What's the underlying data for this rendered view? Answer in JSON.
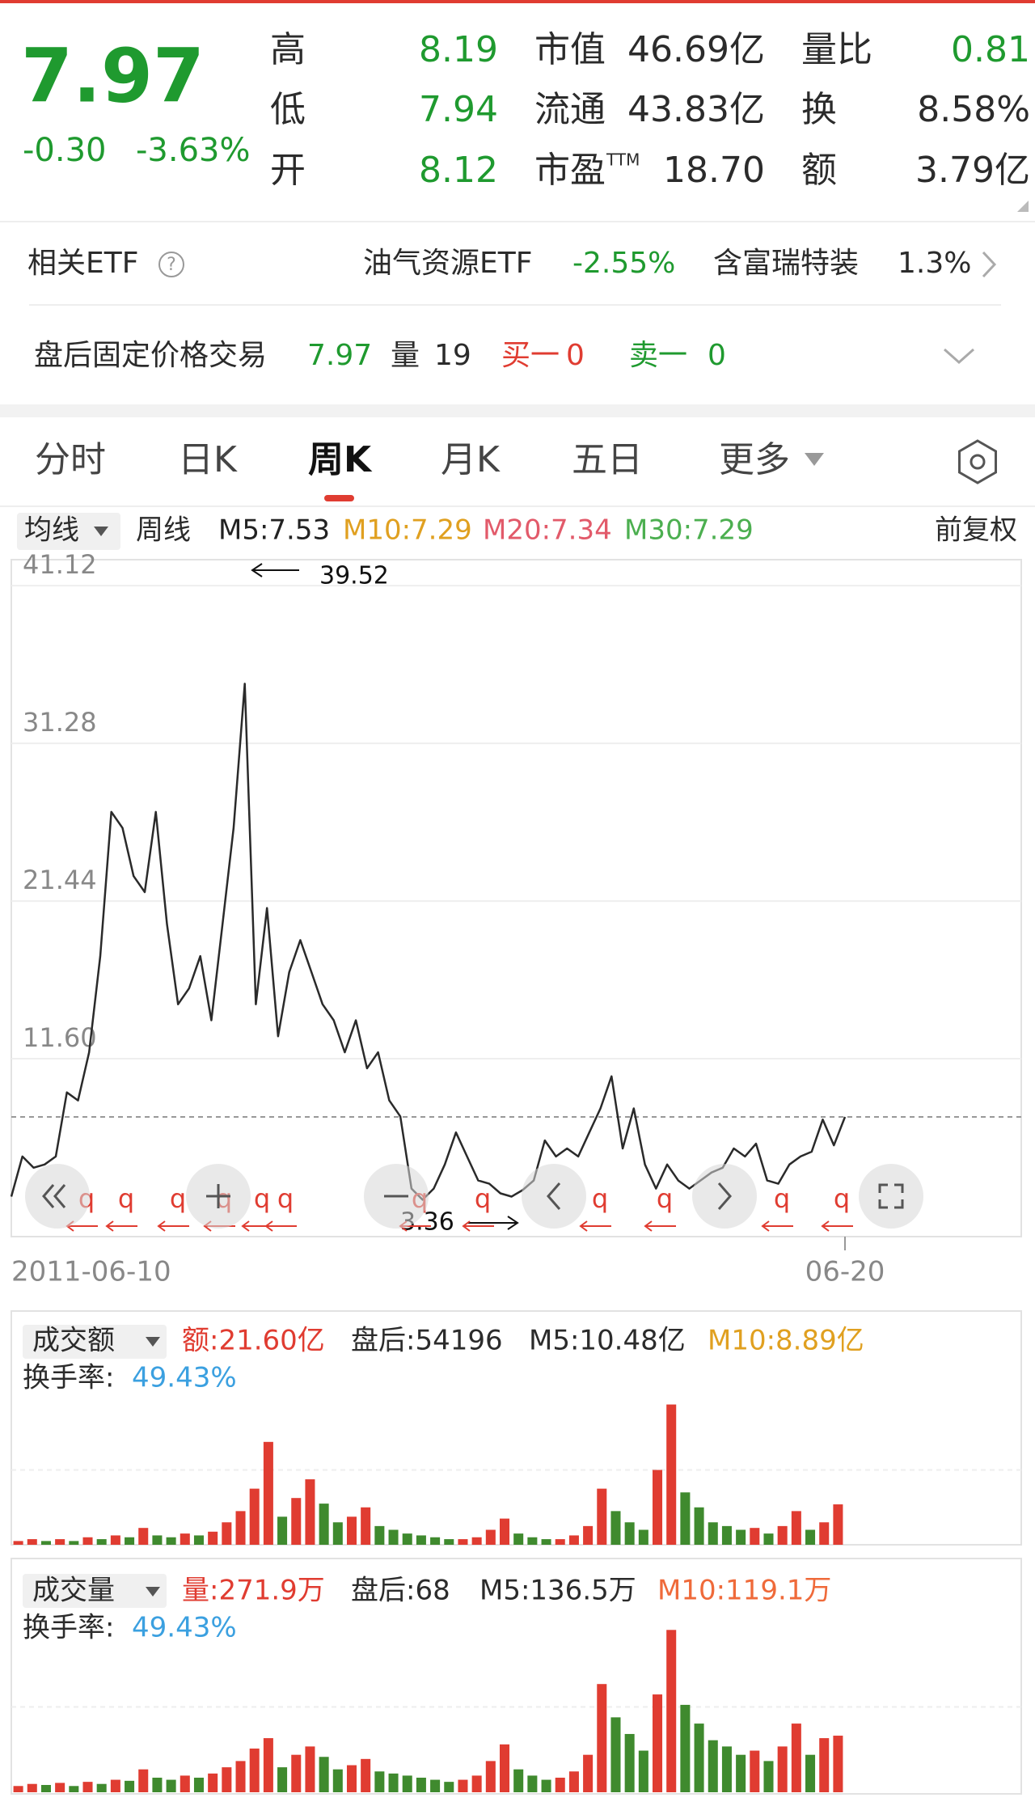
{
  "quote": {
    "price": "7.97",
    "change": "-0.30",
    "change_pct": "-3.63%",
    "high_label": "高",
    "high": "8.19",
    "low_label": "低",
    "low": "7.94",
    "open_label": "开",
    "open": "8.12",
    "mcap_label": "市值",
    "mcap": "46.69亿",
    "float_label": "流通",
    "float": "43.83亿",
    "pe_label": "市盈",
    "pe_sup": "TTM",
    "pe": "18.70",
    "vr_label": "量比",
    "vr": "0.81",
    "turn_label": "换",
    "turn": "8.58%",
    "amt_label": "额",
    "amt": "3.79亿"
  },
  "etf": {
    "label": "相关ETF",
    "help": "?",
    "name": "油气资源ETF",
    "change": "-2.55%",
    "holding": "含富瑞特装",
    "holding_pct": "1.3%"
  },
  "after_hours": {
    "label": "盘后固定价格交易",
    "price": "7.97",
    "vol_label": "量",
    "vol": "19",
    "buy_label": "买一",
    "buy": "0",
    "sell_label": "卖一",
    "sell": "0"
  },
  "tabs": [
    "分时",
    "日K",
    "周K",
    "月K",
    "五日",
    "更多"
  ],
  "active_tab": "周K",
  "ma_bar": {
    "dropdown": "均线",
    "period": "周线",
    "items": [
      {
        "label": "M5:7.53",
        "color": "#222222"
      },
      {
        "label": "M10:7.29",
        "color": "#e0a020"
      },
      {
        "label": "M20:7.34",
        "color": "#e25a6a"
      },
      {
        "label": "M30:7.29",
        "color": "#4caf50"
      }
    ],
    "adjust": "前复权"
  },
  "chart_data": [
    {
      "type": "line",
      "color": "#2a2a2a",
      "values": [
        3.0,
        5.5,
        4.8,
        5.0,
        5.5,
        9.5,
        9.0,
        12,
        18,
        27,
        26,
        23,
        22,
        27,
        20,
        15,
        16,
        18,
        14,
        20,
        26,
        35,
        15,
        21,
        13,
        17,
        19,
        17,
        15,
        14,
        12,
        14,
        11,
        12,
        9,
        8,
        3.5,
        2.8,
        3.5,
        5,
        7,
        5.5,
        4,
        3.8,
        3.2,
        3.0,
        3.4,
        4,
        6.5,
        5.5,
        6,
        5.5,
        7,
        8.5,
        10.5,
        6,
        8.5,
        5,
        3.5,
        5,
        4,
        3.5,
        4,
        4.5,
        4.8,
        6,
        5.5,
        6.3,
        4.0,
        3.8,
        5.0,
        5.5,
        5.8,
        7.8,
        6.2,
        7.97
      ],
      "ylim": [
        0.5,
        42.74
      ],
      "yticks": [
        41.12,
        31.28,
        21.44,
        {
          "value": 11.6,
          "label": "11.60"
        }
      ],
      "grid": true,
      "last_price_line": 7.97,
      "x_labels": [
        "2011-06-10",
        "06-20"
      ],
      "annotations": [
        "39.52",
        "3.36"
      ],
      "markers": [
        "q",
        "q",
        "q",
        "q",
        "q",
        "q",
        "q",
        "q",
        "q",
        "q",
        "q",
        "q"
      ]
    },
    {
      "type": "bar",
      "header": {
        "dropdown": "成交额",
        "value": "额:21.60亿",
        "after": "盘后:54196",
        "m5": "M5:10.48亿",
        "m10": "M10:8.89亿",
        "turnover_label": "换手率:",
        "turnover": "49.43%"
      },
      "colors": [
        "#e03c31",
        "#3f8a2e"
      ],
      "values": [
        2,
        3,
        2,
        3,
        2,
        4,
        3,
        5,
        4,
        9,
        5,
        4,
        6,
        5,
        7,
        12,
        18,
        30,
        55,
        15,
        25,
        35,
        22,
        12,
        15,
        20,
        10,
        8,
        6,
        5,
        4,
        3,
        3,
        4,
        8,
        14,
        6,
        4,
        3,
        3,
        5,
        10,
        30,
        18,
        12,
        8,
        40,
        75,
        28,
        20,
        12,
        10,
        8,
        9,
        6,
        10,
        18,
        8,
        12,
        21.6
      ],
      "ylim": [
        0,
        80
      ]
    },
    {
      "type": "bar",
      "header": {
        "dropdown": "成交量",
        "value": "量:271.9万",
        "after": "盘后:68",
        "m5": "M5:136.5万",
        "m10": "M10:119.1万",
        "turnover_label": "换手率:",
        "turnover": "49.43%"
      },
      "colors": [
        "#e03c31",
        "#3f8a2e"
      ],
      "values": [
        30,
        40,
        35,
        45,
        30,
        50,
        40,
        60,
        55,
        110,
        70,
        60,
        80,
        70,
        90,
        120,
        150,
        210,
        260,
        120,
        180,
        220,
        170,
        110,
        130,
        160,
        100,
        90,
        80,
        70,
        60,
        50,
        60,
        80,
        150,
        230,
        110,
        80,
        60,
        70,
        100,
        180,
        520,
        360,
        280,
        200,
        470,
        780,
        420,
        330,
        250,
        220,
        180,
        200,
        150,
        220,
        330,
        180,
        260,
        271.9
      ],
      "ylim": [
        0,
        820
      ]
    }
  ]
}
